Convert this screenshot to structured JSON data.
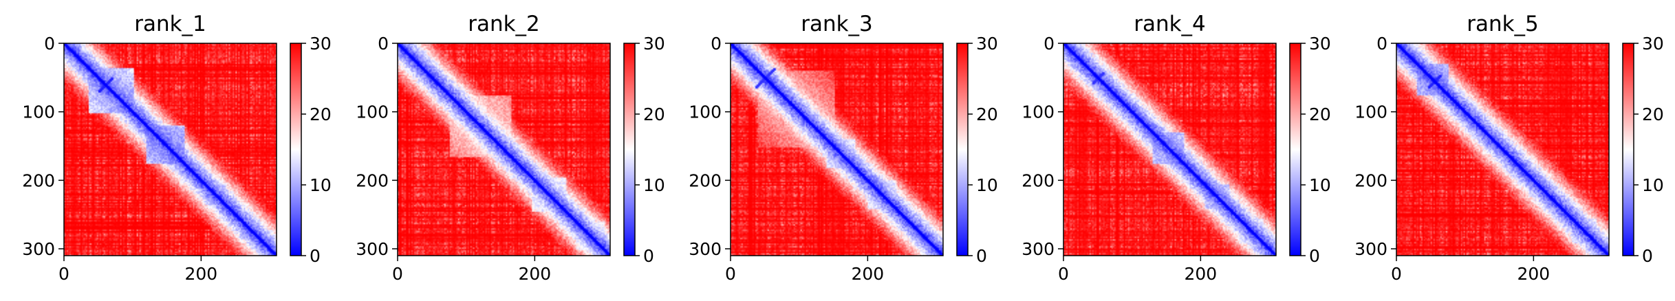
{
  "figure": {
    "colormap": "bwr",
    "colors": {
      "low": "#0000ff",
      "mid": "#ffffff",
      "high": "#ff0000",
      "axis": "#000000"
    }
  },
  "chart_data": [
    {
      "type": "heatmap",
      "title": "rank_1",
      "xlabel": "",
      "ylabel": "",
      "xlim": [
        0,
        310
      ],
      "ylim": [
        310,
        0
      ],
      "xticks": [
        "0",
        "200"
      ],
      "yticks": [
        "0",
        "100",
        "200",
        "300"
      ],
      "colorbar": {
        "range": [
          0,
          30
        ],
        "ticks": [
          "0",
          "10",
          "20",
          "30"
        ]
      },
      "matrix_size": 310,
      "diagonal_value": 0,
      "background_value": 30,
      "blocks": [
        {
          "start": 35,
          "end": 100,
          "value": 6
        },
        {
          "start": 120,
          "end": 175,
          "value": 5
        },
        {
          "start": 205,
          "end": 235,
          "value": 8
        },
        {
          "start": 255,
          "end": 285,
          "value": 8
        }
      ],
      "crosses": [
        {
          "center": 60,
          "half_width": 12,
          "value": 2
        }
      ]
    },
    {
      "type": "heatmap",
      "title": "rank_2",
      "xlabel": "",
      "ylabel": "",
      "xlim": [
        0,
        310
      ],
      "ylim": [
        310,
        0
      ],
      "xticks": [
        "0",
        "200"
      ],
      "yticks": [
        "0",
        "100",
        "200",
        "300"
      ],
      "colorbar": {
        "range": [
          0,
          30
        ],
        "ticks": [
          "0",
          "10",
          "20",
          "30"
        ]
      },
      "matrix_size": 310,
      "diagonal_value": 0,
      "background_value": 30,
      "blocks": [
        {
          "start": 75,
          "end": 165,
          "value": 13
        },
        {
          "start": 195,
          "end": 245,
          "value": 9
        },
        {
          "start": 260,
          "end": 300,
          "value": 10
        }
      ],
      "crosses": []
    },
    {
      "type": "heatmap",
      "title": "rank_3",
      "xlabel": "",
      "ylabel": "",
      "xlim": [
        0,
        310
      ],
      "ylim": [
        310,
        0
      ],
      "xticks": [
        "0",
        "200"
      ],
      "yticks": [
        "0",
        "100",
        "200",
        "300"
      ],
      "colorbar": {
        "range": [
          0,
          30
        ],
        "ticks": [
          "0",
          "10",
          "20",
          "30"
        ]
      },
      "matrix_size": 310,
      "diagonal_value": 0,
      "background_value": 30,
      "blocks": [
        {
          "start": 40,
          "end": 150,
          "value": 15
        },
        {
          "start": 140,
          "end": 180,
          "value": 8
        },
        {
          "start": 200,
          "end": 240,
          "value": 9
        }
      ],
      "crosses": [
        {
          "center": 50,
          "half_width": 15,
          "value": 3
        }
      ]
    },
    {
      "type": "heatmap",
      "title": "rank_4",
      "xlabel": "",
      "ylabel": "",
      "xlim": [
        0,
        310
      ],
      "ylim": [
        310,
        0
      ],
      "xticks": [
        "0",
        "200"
      ],
      "yticks": [
        "0",
        "100",
        "200",
        "300"
      ],
      "colorbar": {
        "range": [
          0,
          30
        ],
        "ticks": [
          "0",
          "10",
          "20",
          "30"
        ]
      },
      "matrix_size": 310,
      "diagonal_value": 0,
      "background_value": 30,
      "blocks": [
        {
          "start": 130,
          "end": 175,
          "value": 6
        },
        {
          "start": 205,
          "end": 240,
          "value": 7
        },
        {
          "start": 255,
          "end": 290,
          "value": 10
        }
      ],
      "crosses": [
        {
          "center": 50,
          "half_width": 10,
          "value": 3
        }
      ]
    },
    {
      "type": "heatmap",
      "title": "rank_5",
      "xlabel": "",
      "ylabel": "",
      "xlim": [
        0,
        310
      ],
      "ylim": [
        310,
        0
      ],
      "xticks": [
        "0",
        "200"
      ],
      "yticks": [
        "0",
        "100",
        "200",
        "300"
      ],
      "colorbar": {
        "range": [
          0,
          30
        ],
        "ticks": [
          "0",
          "10",
          "20",
          "30"
        ]
      },
      "matrix_size": 310,
      "diagonal_value": 0,
      "background_value": 30,
      "blocks": [
        {
          "start": 30,
          "end": 75,
          "value": 5
        },
        {
          "start": 125,
          "end": 160,
          "value": 12
        },
        {
          "start": 255,
          "end": 290,
          "value": 9
        }
      ],
      "crosses": [
        {
          "center": 55,
          "half_width": 10,
          "value": 2
        }
      ]
    }
  ]
}
